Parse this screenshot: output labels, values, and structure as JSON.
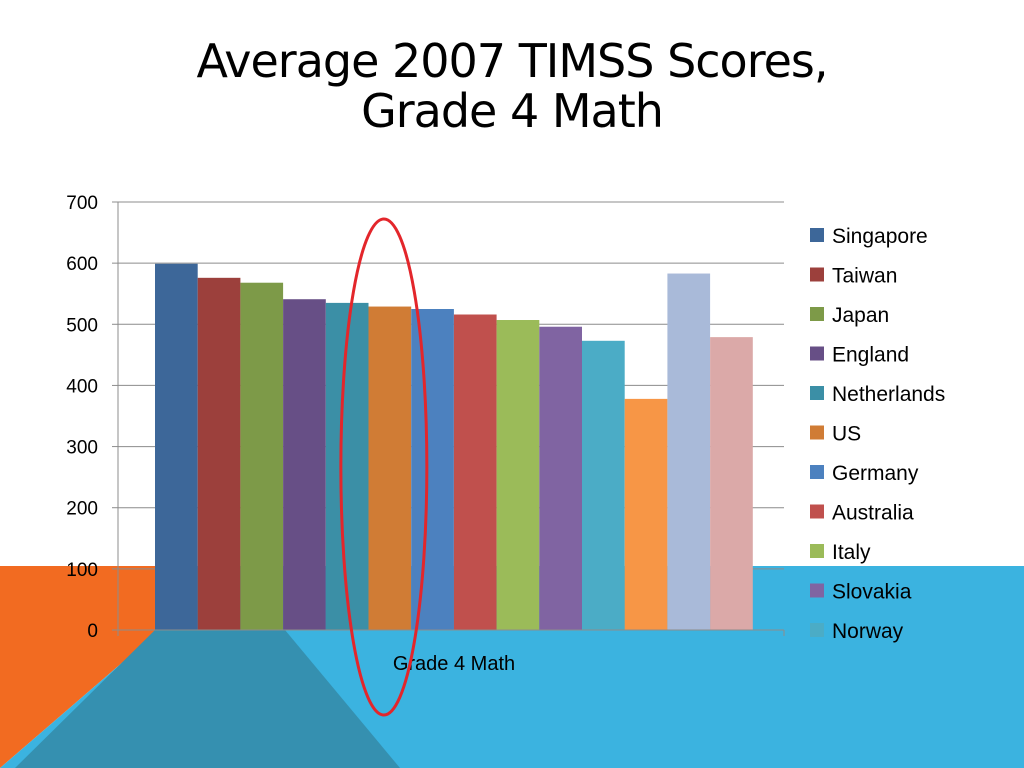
{
  "title_line1": "Average 2007 TIMSS Scores,",
  "title_line2": "Grade 4 Math",
  "colors": {
    "orange_band": "#f26b21",
    "blue_band": "#3bb3e0",
    "dark_teal_band": "#3590b0",
    "highlight_ellipse": "#e3262b"
  },
  "chart_data": {
    "type": "bar",
    "title": "Average 2007 TIMSS Scores, Grade 4 Math",
    "xlabel": "Grade 4 Math",
    "ylabel": "",
    "ylim": [
      0,
      700
    ],
    "yticks": [
      "0",
      "100",
      "200",
      "300",
      "400",
      "500",
      "600",
      "700"
    ],
    "grid": true,
    "legend_position": "right",
    "categories": [
      "Grade 4 Math"
    ],
    "series": [
      {
        "name": "Singapore",
        "values": [
          599
        ],
        "color": "#3d6799"
      },
      {
        "name": "Taiwan",
        "values": [
          576
        ],
        "color": "#9c403c"
      },
      {
        "name": "Japan",
        "values": [
          568
        ],
        "color": "#7d9a48"
      },
      {
        "name": "England",
        "values": [
          541
        ],
        "color": "#674f86"
      },
      {
        "name": "Netherlands",
        "values": [
          535
        ],
        "color": "#3b8fa6"
      },
      {
        "name": "US",
        "values": [
          529
        ],
        "color": "#d07c35"
      },
      {
        "name": "Germany",
        "values": [
          525
        ],
        "color": "#4c81bf"
      },
      {
        "name": "Australia",
        "values": [
          516
        ],
        "color": "#c0504d"
      },
      {
        "name": "Italy",
        "values": [
          507
        ],
        "color": "#9bbb59"
      },
      {
        "name": "Slovakia",
        "values": [
          496
        ],
        "color": "#8064a2"
      },
      {
        "name": "Norway",
        "values": [
          473
        ],
        "color": "#4bacc6"
      },
      {
        "name": "",
        "values": [
          378
        ],
        "color": "#f79646"
      },
      {
        "name": "",
        "values": [
          583
        ],
        "color": "#a9bad9"
      },
      {
        "name": "",
        "values": [
          479
        ],
        "color": "#dba9a8"
      }
    ],
    "highlight": "US"
  }
}
